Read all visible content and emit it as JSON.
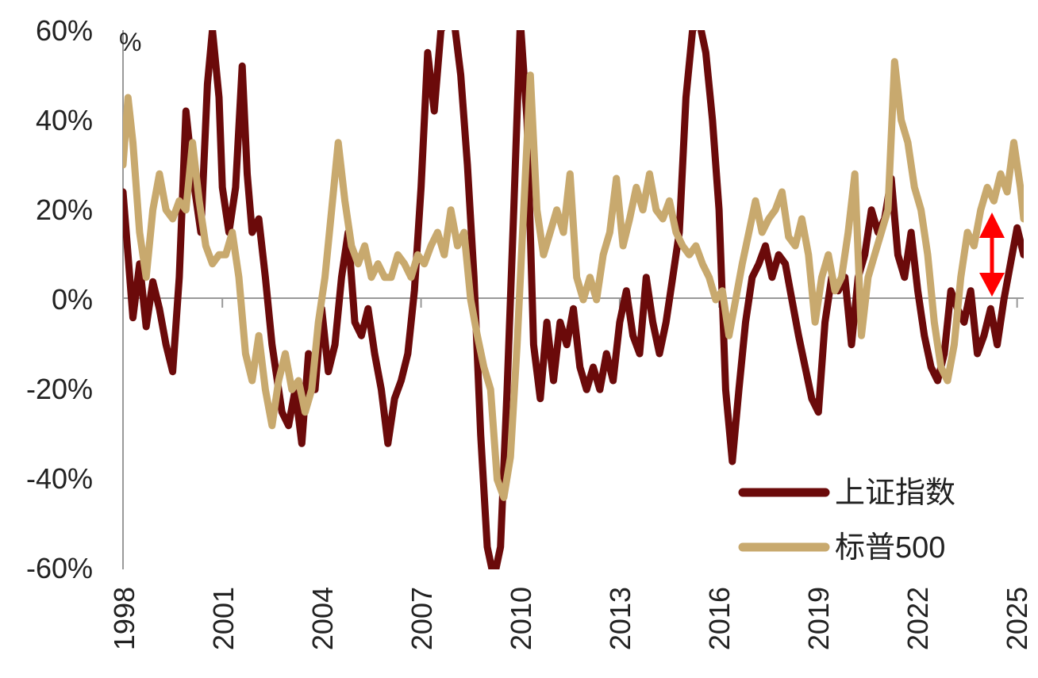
{
  "chart_data": {
    "type": "line",
    "unit_label": "%",
    "x_tick_labels": [
      "1998",
      "2001",
      "2004",
      "2007",
      "2010",
      "2013",
      "2016",
      "2019",
      "2022",
      "2025"
    ],
    "y_tick_labels": [
      "60%",
      "40%",
      "20%",
      "0%",
      "-20%",
      "-40%",
      "-60%"
    ],
    "ylim": [
      -60,
      60
    ],
    "xlim": [
      1998,
      2025.2
    ],
    "grid": false,
    "legend_position": "bottom-right",
    "annotation": "red double-headed arrow near 2024 marking the gap between the two series",
    "series": [
      {
        "name": "上证指数",
        "color": "#6b0a0a",
        "points": [
          [
            1998.0,
            24
          ],
          [
            1998.15,
            10
          ],
          [
            1998.3,
            -4
          ],
          [
            1998.5,
            8
          ],
          [
            1998.7,
            -6
          ],
          [
            1998.9,
            4
          ],
          [
            1999.1,
            -2
          ],
          [
            1999.3,
            -10
          ],
          [
            1999.5,
            -16
          ],
          [
            1999.7,
            5
          ],
          [
            1999.9,
            42
          ],
          [
            2000.1,
            28
          ],
          [
            2000.35,
            15
          ],
          [
            2000.55,
            48
          ],
          [
            2000.7,
            60
          ],
          [
            2000.9,
            45
          ],
          [
            2001.0,
            25
          ],
          [
            2001.2,
            15
          ],
          [
            2001.4,
            25
          ],
          [
            2001.6,
            52
          ],
          [
            2001.75,
            28
          ],
          [
            2001.9,
            15
          ],
          [
            2002.1,
            18
          ],
          [
            2002.3,
            5
          ],
          [
            2002.5,
            -10
          ],
          [
            2002.8,
            -25
          ],
          [
            2003.0,
            -28
          ],
          [
            2003.2,
            -20
          ],
          [
            2003.4,
            -32
          ],
          [
            2003.6,
            -12
          ],
          [
            2003.8,
            -20
          ],
          [
            2004.0,
            -2
          ],
          [
            2004.2,
            -16
          ],
          [
            2004.4,
            -10
          ],
          [
            2004.6,
            5
          ],
          [
            2004.8,
            15
          ],
          [
            2005.0,
            -5
          ],
          [
            2005.2,
            -8
          ],
          [
            2005.4,
            -2
          ],
          [
            2005.6,
            -12
          ],
          [
            2005.8,
            -20
          ],
          [
            2006.0,
            -32
          ],
          [
            2006.2,
            -22
          ],
          [
            2006.4,
            -18
          ],
          [
            2006.6,
            -12
          ],
          [
            2006.8,
            2
          ],
          [
            2007.0,
            25
          ],
          [
            2007.2,
            55
          ],
          [
            2007.4,
            42
          ],
          [
            2007.6,
            60
          ],
          [
            2007.8,
            62
          ],
          [
            2008.0,
            62
          ],
          [
            2008.2,
            50
          ],
          [
            2008.4,
            30
          ],
          [
            2008.6,
            5
          ],
          [
            2008.8,
            -30
          ],
          [
            2009.0,
            -55
          ],
          [
            2009.2,
            -62
          ],
          [
            2009.4,
            -55
          ],
          [
            2009.6,
            -20
          ],
          [
            2009.8,
            20
          ],
          [
            2010.0,
            62
          ],
          [
            2010.2,
            40
          ],
          [
            2010.4,
            -10
          ],
          [
            2010.6,
            -22
          ],
          [
            2010.8,
            -5
          ],
          [
            2011.0,
            -18
          ],
          [
            2011.2,
            -5
          ],
          [
            2011.4,
            -10
          ],
          [
            2011.6,
            -2
          ],
          [
            2011.8,
            -15
          ],
          [
            2012.0,
            -20
          ],
          [
            2012.2,
            -15
          ],
          [
            2012.4,
            -20
          ],
          [
            2012.6,
            -12
          ],
          [
            2012.8,
            -18
          ],
          [
            2013.0,
            -5
          ],
          [
            2013.2,
            2
          ],
          [
            2013.4,
            -8
          ],
          [
            2013.6,
            -12
          ],
          [
            2013.8,
            5
          ],
          [
            2014.0,
            -5
          ],
          [
            2014.2,
            -12
          ],
          [
            2014.4,
            -5
          ],
          [
            2014.6,
            5
          ],
          [
            2014.8,
            15
          ],
          [
            2015.0,
            45
          ],
          [
            2015.2,
            60
          ],
          [
            2015.4,
            62
          ],
          [
            2015.6,
            55
          ],
          [
            2015.8,
            40
          ],
          [
            2016.0,
            20
          ],
          [
            2016.2,
            -20
          ],
          [
            2016.4,
            -36
          ],
          [
            2016.6,
            -20
          ],
          [
            2016.8,
            -5
          ],
          [
            2017.0,
            5
          ],
          [
            2017.2,
            8
          ],
          [
            2017.4,
            12
          ],
          [
            2017.6,
            5
          ],
          [
            2017.8,
            10
          ],
          [
            2018.0,
            8
          ],
          [
            2018.2,
            0
          ],
          [
            2018.4,
            -8
          ],
          [
            2018.6,
            -15
          ],
          [
            2018.8,
            -22
          ],
          [
            2019.0,
            -25
          ],
          [
            2019.2,
            -5
          ],
          [
            2019.4,
            5
          ],
          [
            2019.6,
            2
          ],
          [
            2019.8,
            5
          ],
          [
            2020.0,
            -10
          ],
          [
            2020.2,
            5
          ],
          [
            2020.4,
            10
          ],
          [
            2020.6,
            20
          ],
          [
            2020.8,
            15
          ],
          [
            2021.0,
            18
          ],
          [
            2021.2,
            27
          ],
          [
            2021.4,
            10
          ],
          [
            2021.6,
            5
          ],
          [
            2021.8,
            15
          ],
          [
            2022.0,
            2
          ],
          [
            2022.2,
            -8
          ],
          [
            2022.4,
            -15
          ],
          [
            2022.6,
            -18
          ],
          [
            2022.8,
            -12
          ],
          [
            2023.0,
            2
          ],
          [
            2023.2,
            -2
          ],
          [
            2023.4,
            -5
          ],
          [
            2023.6,
            2
          ],
          [
            2023.8,
            -12
          ],
          [
            2024.0,
            -8
          ],
          [
            2024.2,
            -2
          ],
          [
            2024.4,
            -10
          ],
          [
            2024.6,
            0
          ],
          [
            2024.8,
            8
          ],
          [
            2025.0,
            16
          ],
          [
            2025.2,
            10
          ]
        ]
      },
      {
        "name": "标普500",
        "color": "#c8a96e",
        "points": [
          [
            1998.0,
            30
          ],
          [
            1998.15,
            45
          ],
          [
            1998.3,
            35
          ],
          [
            1998.5,
            15
          ],
          [
            1998.7,
            5
          ],
          [
            1998.9,
            20
          ],
          [
            1999.1,
            28
          ],
          [
            1999.3,
            20
          ],
          [
            1999.5,
            18
          ],
          [
            1999.7,
            22
          ],
          [
            1999.9,
            20
          ],
          [
            2000.1,
            35
          ],
          [
            2000.3,
            22
          ],
          [
            2000.5,
            12
          ],
          [
            2000.7,
            8
          ],
          [
            2000.9,
            10
          ],
          [
            2001.1,
            10
          ],
          [
            2001.3,
            15
          ],
          [
            2001.5,
            5
          ],
          [
            2001.7,
            -12
          ],
          [
            2001.9,
            -18
          ],
          [
            2002.1,
            -8
          ],
          [
            2002.3,
            -20
          ],
          [
            2002.5,
            -28
          ],
          [
            2002.7,
            -18
          ],
          [
            2002.9,
            -12
          ],
          [
            2003.1,
            -20
          ],
          [
            2003.3,
            -18
          ],
          [
            2003.5,
            -25
          ],
          [
            2003.7,
            -20
          ],
          [
            2003.9,
            -5
          ],
          [
            2004.1,
            5
          ],
          [
            2004.3,
            20
          ],
          [
            2004.5,
            35
          ],
          [
            2004.7,
            22
          ],
          [
            2004.9,
            12
          ],
          [
            2005.1,
            8
          ],
          [
            2005.3,
            12
          ],
          [
            2005.5,
            5
          ],
          [
            2005.7,
            8
          ],
          [
            2005.9,
            5
          ],
          [
            2006.1,
            5
          ],
          [
            2006.3,
            10
          ],
          [
            2006.5,
            8
          ],
          [
            2006.7,
            5
          ],
          [
            2006.9,
            10
          ],
          [
            2007.1,
            8
          ],
          [
            2007.3,
            12
          ],
          [
            2007.5,
            15
          ],
          [
            2007.7,
            10
          ],
          [
            2007.9,
            20
          ],
          [
            2008.1,
            12
          ],
          [
            2008.3,
            15
          ],
          [
            2008.5,
            0
          ],
          [
            2008.7,
            -8
          ],
          [
            2008.9,
            -15
          ],
          [
            2009.1,
            -20
          ],
          [
            2009.3,
            -40
          ],
          [
            2009.5,
            -44
          ],
          [
            2009.7,
            -35
          ],
          [
            2009.9,
            -10
          ],
          [
            2010.1,
            20
          ],
          [
            2010.3,
            50
          ],
          [
            2010.5,
            20
          ],
          [
            2010.7,
            10
          ],
          [
            2010.9,
            15
          ],
          [
            2011.1,
            20
          ],
          [
            2011.3,
            15
          ],
          [
            2011.5,
            28
          ],
          [
            2011.7,
            5
          ],
          [
            2011.9,
            0
          ],
          [
            2012.1,
            5
          ],
          [
            2012.3,
            0
          ],
          [
            2012.5,
            10
          ],
          [
            2012.7,
            15
          ],
          [
            2012.9,
            27
          ],
          [
            2013.1,
            12
          ],
          [
            2013.3,
            18
          ],
          [
            2013.5,
            25
          ],
          [
            2013.7,
            20
          ],
          [
            2013.9,
            28
          ],
          [
            2014.1,
            20
          ],
          [
            2014.3,
            18
          ],
          [
            2014.5,
            22
          ],
          [
            2014.7,
            15
          ],
          [
            2014.9,
            12
          ],
          [
            2015.1,
            10
          ],
          [
            2015.3,
            12
          ],
          [
            2015.5,
            8
          ],
          [
            2015.7,
            5
          ],
          [
            2015.9,
            0
          ],
          [
            2016.1,
            2
          ],
          [
            2016.3,
            -8
          ],
          [
            2016.5,
            0
          ],
          [
            2016.7,
            8
          ],
          [
            2016.9,
            15
          ],
          [
            2017.1,
            22
          ],
          [
            2017.3,
            15
          ],
          [
            2017.5,
            18
          ],
          [
            2017.7,
            20
          ],
          [
            2017.9,
            24
          ],
          [
            2018.1,
            14
          ],
          [
            2018.3,
            12
          ],
          [
            2018.5,
            18
          ],
          [
            2018.7,
            10
          ],
          [
            2018.9,
            -5
          ],
          [
            2019.1,
            5
          ],
          [
            2019.3,
            10
          ],
          [
            2019.5,
            2
          ],
          [
            2019.7,
            5
          ],
          [
            2019.9,
            15
          ],
          [
            2020.1,
            28
          ],
          [
            2020.3,
            -8
          ],
          [
            2020.5,
            5
          ],
          [
            2020.7,
            10
          ],
          [
            2020.9,
            15
          ],
          [
            2021.1,
            20
          ],
          [
            2021.3,
            53
          ],
          [
            2021.5,
            40
          ],
          [
            2021.7,
            35
          ],
          [
            2021.9,
            25
          ],
          [
            2022.1,
            20
          ],
          [
            2022.3,
            10
          ],
          [
            2022.5,
            -5
          ],
          [
            2022.7,
            -15
          ],
          [
            2022.9,
            -18
          ],
          [
            2023.1,
            -10
          ],
          [
            2023.3,
            5
          ],
          [
            2023.5,
            15
          ],
          [
            2023.7,
            12
          ],
          [
            2023.9,
            20
          ],
          [
            2024.1,
            25
          ],
          [
            2024.3,
            22
          ],
          [
            2024.5,
            28
          ],
          [
            2024.7,
            24
          ],
          [
            2024.9,
            35
          ],
          [
            2025.0,
            30
          ],
          [
            2025.1,
            25
          ],
          [
            2025.2,
            18
          ]
        ]
      }
    ]
  }
}
